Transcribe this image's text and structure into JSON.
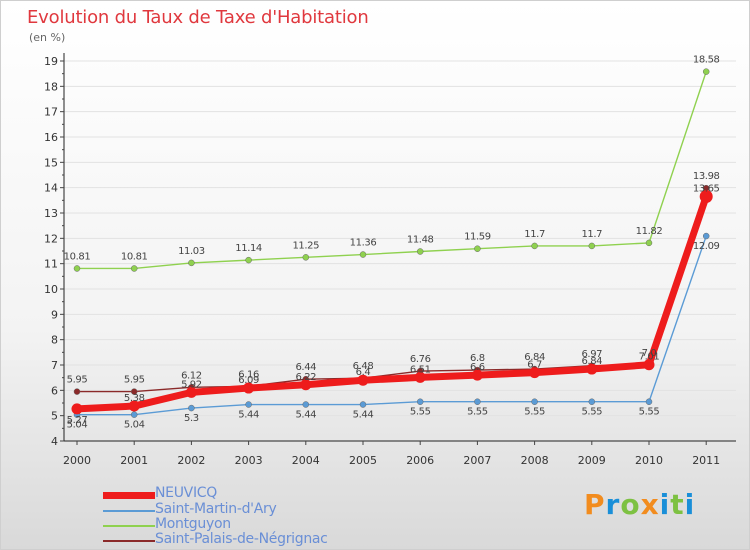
{
  "chart_data": {
    "type": "line",
    "title": "Evolution du Taux de Taxe d'Habitation",
    "subtitle": "(en %)",
    "xlabel": "",
    "ylabel": "",
    "ylim": [
      4,
      19
    ],
    "yticks": [
      "4",
      "5",
      "6",
      "7",
      "8",
      "9",
      "10",
      "11",
      "12",
      "13",
      "14",
      "15",
      "16",
      "17",
      "18",
      "19"
    ],
    "categories": [
      "2000",
      "2001",
      "2002",
      "2003",
      "2004",
      "2005",
      "2006",
      "2007",
      "2008",
      "2009",
      "2010",
      "2011"
    ],
    "series": [
      {
        "name": "Saint-Martin-d'Ary",
        "color": "#5b9bd5",
        "values": [
          5.04,
          5.04,
          5.3,
          5.44,
          5.44,
          5.44,
          5.55,
          5.55,
          5.55,
          5.55,
          5.55,
          12.09
        ],
        "labels": [
          "5.04",
          "5.04",
          "5.3",
          "5.44",
          "5.44",
          "5.44",
          "5.55",
          "5.55",
          "5.55",
          "5.55",
          "5.55",
          "12.09"
        ]
      },
      {
        "name": "Montguyon",
        "color": "#8fd14f",
        "values": [
          10.81,
          10.81,
          11.03,
          11.14,
          11.25,
          11.36,
          11.48,
          11.59,
          11.7,
          11.7,
          11.82,
          18.58
        ],
        "labels": [
          "10.81",
          "10.81",
          "11.03",
          "11.14",
          "11.25",
          "11.36",
          "11.48",
          "11.59",
          "11.7",
          "11.7",
          "11.82",
          "18.58"
        ]
      },
      {
        "name": "Saint-Palais-de-Négrignac",
        "color": "#8b2a2a",
        "values": [
          5.95,
          5.95,
          6.12,
          6.16,
          6.44,
          6.48,
          6.76,
          6.8,
          6.84,
          6.97,
          7.0,
          13.98
        ],
        "labels": [
          "5.95",
          "5.95",
          "6.12",
          "6.16",
          "6.44",
          "6.48",
          "6.76",
          "6.8",
          "6.84",
          "6.97",
          "7.0",
          "13.98"
        ]
      },
      {
        "name": "NEUVICQ",
        "color": "#ee1c1c",
        "values": [
          5.27,
          5.38,
          5.92,
          6.09,
          6.22,
          6.4,
          6.51,
          6.6,
          6.7,
          6.84,
          7.01,
          13.65
        ],
        "labels": [
          "5.27",
          "5.38",
          "5.92",
          "6.09",
          "6.22",
          "6.4",
          "6.51",
          "6.6",
          "6.7",
          "6.84",
          "7.01",
          "13.65"
        ]
      }
    ],
    "legend": [
      {
        "name": "NEUVICQ",
        "color": "#ee1c1c"
      },
      {
        "name": "Saint-Martin-d'Ary",
        "color": "#5b9bd5"
      },
      {
        "name": "Montguyon",
        "color": "#8fd14f"
      },
      {
        "name": "Saint-Palais-de-Négrignac",
        "color": "#8b2a2a"
      }
    ]
  },
  "brand": {
    "letters": [
      "P",
      "r",
      "o",
      "x",
      "i",
      "t",
      "i"
    ],
    "colors": [
      "#f28c1e",
      "#1a8fd8",
      "#7dc142",
      "#f28c1e",
      "#1a8fd8",
      "#7dc142",
      "#1a8fd8"
    ]
  }
}
